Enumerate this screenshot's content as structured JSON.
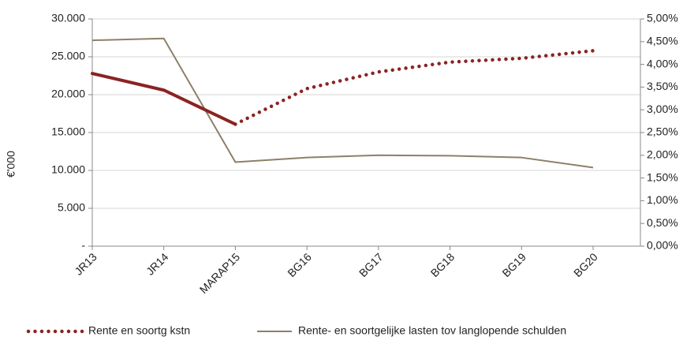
{
  "chart_data": {
    "type": "line",
    "categories": [
      "JR13",
      "JR14",
      "MARAP15",
      "BG16",
      "BG17",
      "BG18",
      "BG19",
      "BG20"
    ],
    "ylabel": "€'000",
    "ylim": [
      0,
      30000
    ],
    "y_ticks": [
      {
        "value": 0,
        "label": "-"
      },
      {
        "value": 5000,
        "label": "5.000"
      },
      {
        "value": 10000,
        "label": "10.000"
      },
      {
        "value": 15000,
        "label": "15.000"
      },
      {
        "value": 20000,
        "label": "20.000"
      },
      {
        "value": 25000,
        "label": "25.000"
      },
      {
        "value": 30000,
        "label": "30.000"
      }
    ],
    "y2lim": [
      0,
      5
    ],
    "y2_ticks": [
      {
        "value": 0,
        "label": "0,00%"
      },
      {
        "value": 0.5,
        "label": "0,50%"
      },
      {
        "value": 1,
        "label": "1,00%"
      },
      {
        "value": 1.5,
        "label": "1,50%"
      },
      {
        "value": 2,
        "label": "2,00%"
      },
      {
        "value": 2.5,
        "label": "2,50%"
      },
      {
        "value": 3,
        "label": "3,00%"
      },
      {
        "value": 3.5,
        "label": "3,50%"
      },
      {
        "value": 4,
        "label": "4,00%"
      },
      {
        "value": 4.5,
        "label": "4,50%"
      },
      {
        "value": 5,
        "label": "5,00%"
      }
    ],
    "grid": true,
    "legend_position": "bottom",
    "series": [
      {
        "name": "Rente en soortg kstn",
        "axis": "left",
        "color": "#8b2323",
        "values": [
          22800,
          20600,
          16100,
          20800,
          23000,
          24300,
          24800,
          25800
        ],
        "solid_until_index": 2
      },
      {
        "name": "Rente- en soortgelijke lasten tov langlopende schulden",
        "axis": "right",
        "color": "#8c8068",
        "values": [
          4.53,
          4.57,
          1.85,
          1.95,
          2.0,
          1.99,
          1.95,
          1.73
        ]
      }
    ]
  }
}
